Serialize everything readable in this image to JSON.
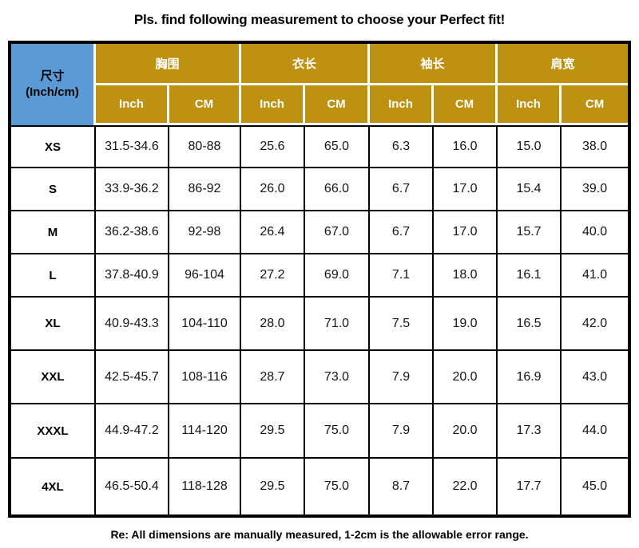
{
  "title": "Pls. find following measurement to choose your Perfect fit!",
  "footer": "Re: All dimensions are manually measured, 1-2cm is the allowable error range.",
  "colors": {
    "header_gold": "#BE9110",
    "header_blue": "#5B9BD5",
    "header_text": "#FFFFFF",
    "body_text": "#141419",
    "grid_line": "#000000",
    "background": "#FFFFFF"
  },
  "table": {
    "corner_header": {
      "line1": "尺寸",
      "line2": "(Inch/cm)"
    },
    "groups": [
      {
        "label": "胸围"
      },
      {
        "label": "衣长"
      },
      {
        "label": "袖长"
      },
      {
        "label": "肩宽"
      }
    ],
    "unit_headers": [
      "Inch",
      "CM",
      "Inch",
      "CM",
      "Inch",
      "CM",
      "Inch",
      "CM"
    ],
    "rows": [
      {
        "size": "XS",
        "values": [
          "31.5-34.6",
          "80-88",
          "25.6",
          "65.0",
          "6.3",
          "16.0",
          "15.0",
          "38.0"
        ]
      },
      {
        "size": "S",
        "values": [
          "33.9-36.2",
          "86-92",
          "26.0",
          "66.0",
          "6.7",
          "17.0",
          "15.4",
          "39.0"
        ]
      },
      {
        "size": "M",
        "values": [
          "36.2-38.6",
          "92-98",
          "26.4",
          "67.0",
          "6.7",
          "17.0",
          "15.7",
          "40.0"
        ]
      },
      {
        "size": "L",
        "values": [
          "37.8-40.9",
          "96-104",
          "27.2",
          "69.0",
          "7.1",
          "18.0",
          "16.1",
          "41.0"
        ]
      },
      {
        "size": "XL",
        "values": [
          "40.9-43.3",
          "104-110",
          "28.0",
          "71.0",
          "7.5",
          "19.0",
          "16.5",
          "42.0"
        ]
      },
      {
        "size": "XXL",
        "values": [
          "42.5-45.7",
          "108-116",
          "28.7",
          "73.0",
          "7.9",
          "20.0",
          "16.9",
          "43.0"
        ]
      },
      {
        "size": "XXXL",
        "values": [
          "44.9-47.2",
          "114-120",
          "29.5",
          "75.0",
          "7.9",
          "20.0",
          "17.3",
          "44.0"
        ]
      },
      {
        "size": "4XL",
        "values": [
          "46.5-50.4",
          "118-128",
          "29.5",
          "75.0",
          "8.7",
          "22.0",
          "17.7",
          "45.0"
        ]
      }
    ]
  },
  "chart_data": {
    "type": "table",
    "title": "Pls. find following measurement to choose your Perfect fit!",
    "columns": [
      "尺寸 (Inch/cm)",
      "胸围 Inch",
      "胸围 CM",
      "衣长 Inch",
      "衣长 CM",
      "袖长 Inch",
      "袖长 CM",
      "肩宽 Inch",
      "肩宽 CM"
    ],
    "rows": [
      [
        "XS",
        "31.5-34.6",
        "80-88",
        "25.6",
        "65.0",
        "6.3",
        "16.0",
        "15.0",
        "38.0"
      ],
      [
        "S",
        "33.9-36.2",
        "86-92",
        "26.0",
        "66.0",
        "6.7",
        "17.0",
        "15.4",
        "39.0"
      ],
      [
        "M",
        "36.2-38.6",
        "92-98",
        "26.4",
        "67.0",
        "6.7",
        "17.0",
        "15.7",
        "40.0"
      ],
      [
        "L",
        "37.8-40.9",
        "96-104",
        "27.2",
        "69.0",
        "7.1",
        "18.0",
        "16.1",
        "41.0"
      ],
      [
        "XL",
        "40.9-43.3",
        "104-110",
        "28.0",
        "71.0",
        "7.5",
        "19.0",
        "16.5",
        "42.0"
      ],
      [
        "XXL",
        "42.5-45.7",
        "108-116",
        "28.7",
        "73.0",
        "7.9",
        "20.0",
        "16.9",
        "43.0"
      ],
      [
        "XXXL",
        "44.9-47.2",
        "114-120",
        "29.5",
        "75.0",
        "7.9",
        "20.0",
        "17.3",
        "44.0"
      ],
      [
        "4XL",
        "46.5-50.4",
        "118-128",
        "29.5",
        "75.0",
        "8.7",
        "22.0",
        "17.7",
        "45.0"
      ]
    ],
    "note": "Re: All dimensions are manually measured, 1-2cm is the allowable error range."
  }
}
